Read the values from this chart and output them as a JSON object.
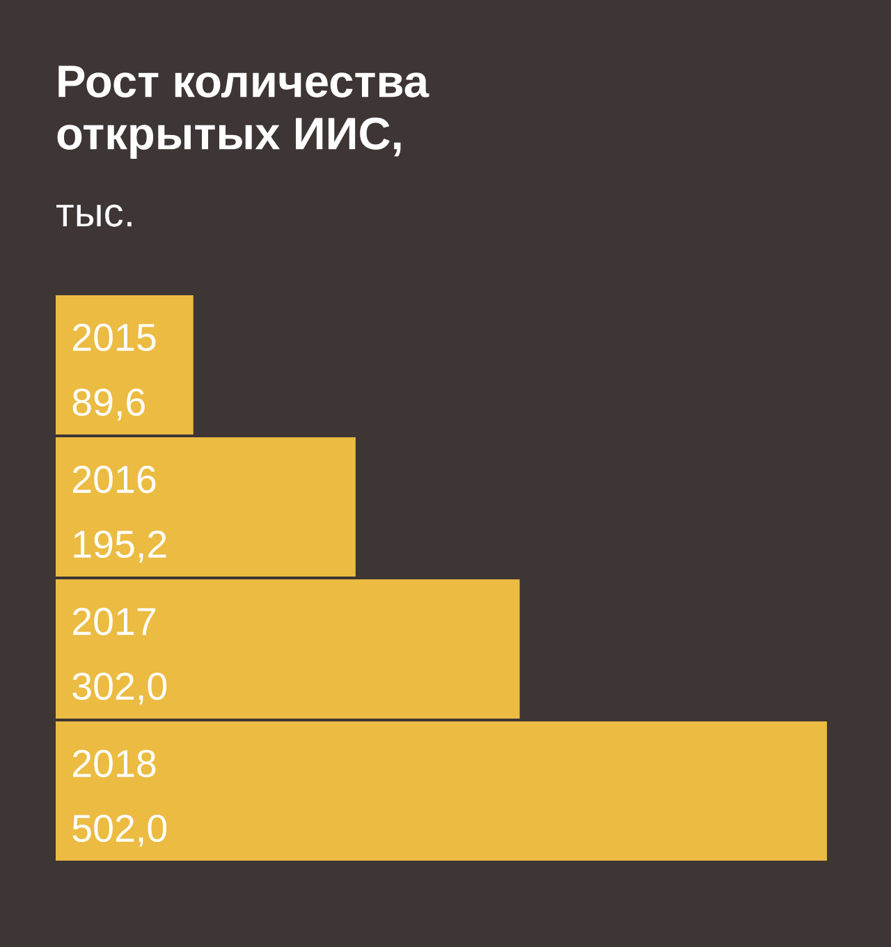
{
  "chart_data": {
    "type": "bar",
    "orientation": "horizontal",
    "title": "Рост количества\nоткрытых ИИС,",
    "subtitle": "тыс.",
    "categories": [
      "2015",
      "2016",
      "2017",
      "2018"
    ],
    "values": [
      89.6,
      195.2,
      302.0,
      502.0
    ],
    "value_labels": [
      "89,6",
      "195,2",
      "302,0",
      "502,0"
    ],
    "color": "#ebbb42",
    "xlim": [
      0,
      502
    ]
  }
}
